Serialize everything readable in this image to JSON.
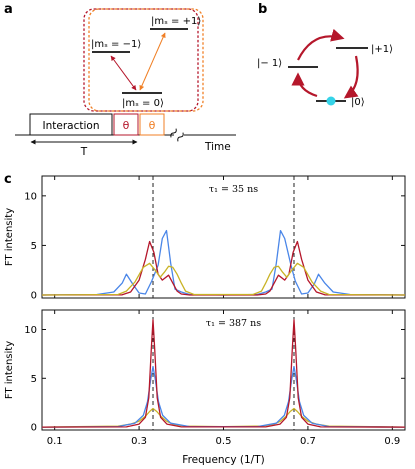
{
  "panel_labels": {
    "a": "a",
    "b": "b",
    "c": "c"
  },
  "panel_a": {
    "level_plus": "|mₛ = +1⟩",
    "level_minus": "|mₛ = −1⟩",
    "level_zero": "|mₛ = 0⟩",
    "interaction_label": "Interaction",
    "pulse1_label": "θ",
    "pulse2_label": "θ",
    "period_label": "T",
    "time_label": "Time",
    "colors": {
      "red": "#b5172b",
      "orange": "#f07f25"
    }
  },
  "panel_b": {
    "level_minus": "|− 1⟩",
    "level_plus": "|+1⟩",
    "level_zero": "|0⟩",
    "colors": {
      "arrow": "#b5172b",
      "dot": "#35d3e8"
    }
  },
  "chart_data": [
    {
      "type": "line",
      "annotation": "τ₁ = 35 ns",
      "ylabel": "FT intensity",
      "xlim": [
        0.07,
        0.93
      ],
      "ylim": [
        -0.3,
        12
      ],
      "yticks": [
        0,
        5,
        10
      ],
      "vlines": [
        0.333,
        0.667
      ],
      "series": [
        {
          "color": "#4a86e8",
          "x": [
            0.07,
            0.2,
            0.24,
            0.26,
            0.27,
            0.285,
            0.3,
            0.315,
            0.33,
            0.345,
            0.355,
            0.365,
            0.375,
            0.385,
            0.4,
            0.42,
            0.5,
            0.58,
            0.6,
            0.615,
            0.625,
            0.635,
            0.645,
            0.66,
            0.67,
            0.685,
            0.7,
            0.715,
            0.725,
            0.74,
            0.76,
            0.8,
            0.93
          ],
          "y": [
            0,
            0.05,
            0.3,
            1.2,
            2.1,
            1.1,
            0.2,
            0.1,
            1.4,
            3.0,
            5.7,
            6.5,
            3.2,
            0.6,
            0.3,
            0.05,
            0,
            0.05,
            0.3,
            0.6,
            3.2,
            6.5,
            5.7,
            3.0,
            1.4,
            0.1,
            0.2,
            1.1,
            2.1,
            1.2,
            0.3,
            0.05,
            0
          ]
        },
        {
          "color": "#b5172b",
          "x": [
            0.07,
            0.26,
            0.28,
            0.3,
            0.315,
            0.325,
            0.335,
            0.345,
            0.355,
            0.37,
            0.38,
            0.39,
            0.4,
            0.42,
            0.58,
            0.6,
            0.61,
            0.62,
            0.63,
            0.645,
            0.655,
            0.665,
            0.675,
            0.685,
            0.7,
            0.72,
            0.74,
            0.93
          ],
          "y": [
            0,
            0.02,
            0.3,
            1.5,
            3.6,
            5.4,
            4.3,
            2.1,
            1.5,
            2.0,
            1.2,
            0.4,
            0.1,
            0,
            0,
            0.1,
            0.4,
            1.2,
            2.0,
            1.5,
            2.1,
            4.3,
            5.4,
            3.6,
            1.5,
            0.3,
            0.02,
            0
          ]
        },
        {
          "color": "#c9b326",
          "x": [
            0.07,
            0.25,
            0.27,
            0.29,
            0.31,
            0.325,
            0.34,
            0.35,
            0.36,
            0.37,
            0.38,
            0.39,
            0.4,
            0.41,
            0.43,
            0.57,
            0.59,
            0.6,
            0.61,
            0.62,
            0.63,
            0.64,
            0.65,
            0.66,
            0.675,
            0.69,
            0.71,
            0.73,
            0.75,
            0.93
          ],
          "y": [
            0,
            0.05,
            0.4,
            1.3,
            2.8,
            3.2,
            2.4,
            1.8,
            2.3,
            2.9,
            2.8,
            2.1,
            1.2,
            0.4,
            0.05,
            0.05,
            0.4,
            1.2,
            2.1,
            2.8,
            2.9,
            2.3,
            1.8,
            2.4,
            3.2,
            2.8,
            1.3,
            0.4,
            0.05,
            0
          ]
        }
      ]
    },
    {
      "type": "line",
      "annotation": "τ₁ = 387 ns",
      "ylabel": "FT intensity",
      "xlabel": "Frequency (1/T)",
      "xlim": [
        0.07,
        0.93
      ],
      "ylim": [
        -0.3,
        12
      ],
      "xticks": [
        0.1,
        0.3,
        0.5,
        0.7,
        0.9
      ],
      "yticks": [
        0,
        5,
        10
      ],
      "vlines": [
        0.333,
        0.667
      ],
      "series": [
        {
          "color": "#c9b326",
          "x": [
            0.07,
            0.15,
            0.25,
            0.28,
            0.3,
            0.315,
            0.325,
            0.333,
            0.342,
            0.352,
            0.365,
            0.38,
            0.41,
            0.5,
            0.59,
            0.62,
            0.635,
            0.648,
            0.658,
            0.667,
            0.675,
            0.685,
            0.7,
            0.72,
            0.75,
            0.85,
            0.93
          ],
          "y": [
            0,
            0.05,
            0.1,
            0.3,
            0.6,
            1.1,
            1.6,
            1.9,
            1.6,
            1.1,
            0.6,
            0.3,
            0.1,
            0.05,
            0.1,
            0.3,
            0.6,
            1.1,
            1.6,
            1.9,
            1.6,
            1.1,
            0.6,
            0.3,
            0.1,
            0.05,
            0
          ]
        },
        {
          "color": "#4a86e8",
          "x": [
            0.07,
            0.25,
            0.29,
            0.31,
            0.32,
            0.328,
            0.333,
            0.338,
            0.346,
            0.356,
            0.375,
            0.42,
            0.58,
            0.625,
            0.644,
            0.654,
            0.662,
            0.667,
            0.672,
            0.68,
            0.69,
            0.71,
            0.75,
            0.93
          ],
          "y": [
            0,
            0.05,
            0.4,
            1.2,
            2.6,
            5.0,
            6.2,
            5.0,
            2.6,
            1.2,
            0.4,
            0.05,
            0.05,
            0.4,
            1.2,
            2.6,
            5.0,
            6.2,
            5.0,
            2.6,
            1.2,
            0.4,
            0.05,
            0
          ]
        },
        {
          "color": "#b5172b",
          "x": [
            0.07,
            0.27,
            0.3,
            0.315,
            0.323,
            0.329,
            0.333,
            0.337,
            0.343,
            0.351,
            0.366,
            0.4,
            0.6,
            0.634,
            0.649,
            0.657,
            0.663,
            0.667,
            0.671,
            0.677,
            0.685,
            0.7,
            0.73,
            0.93
          ],
          "y": [
            0,
            0.02,
            0.3,
            1.0,
            3.0,
            8.0,
            11.0,
            8.0,
            3.0,
            1.0,
            0.3,
            0.02,
            0.02,
            0.3,
            1.0,
            3.0,
            8.0,
            11.0,
            8.0,
            3.0,
            1.0,
            0.3,
            0.02,
            0
          ]
        }
      ]
    }
  ]
}
